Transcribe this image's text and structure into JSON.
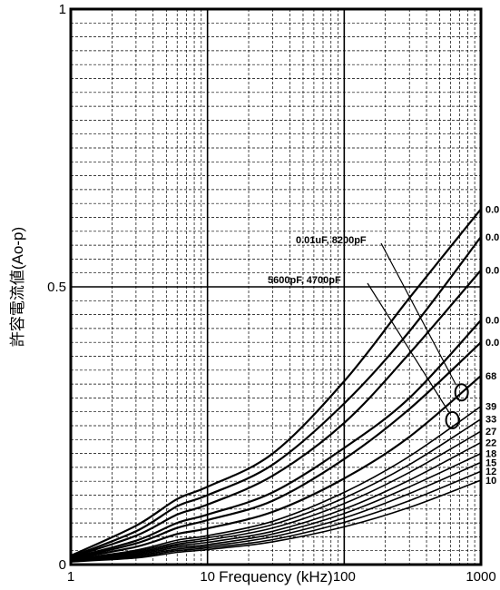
{
  "chart_data": {
    "type": "line",
    "xlabel": "Frequency (kHz)",
    "ylabel": "許容電流値(Ao-p)",
    "x_scale": "log",
    "xlim": [
      1,
      1000
    ],
    "ylim": [
      0,
      1
    ],
    "x_ticks": [
      {
        "value": 1,
        "label": "1"
      },
      {
        "value": 10,
        "label": "10"
      },
      {
        "value": 100,
        "label": "100"
      },
      {
        "value": 1000,
        "label": "1000"
      }
    ],
    "y_ticks": [
      {
        "value": 0,
        "label": "0"
      },
      {
        "value": 0.5,
        "label": "0.5"
      },
      {
        "value": 1,
        "label": "1"
      }
    ],
    "grid": "minor dashed, major solid at decades",
    "annotations": [
      {
        "text": "0.01uF, 8200pF",
        "x": 700,
        "y": 0.31
      },
      {
        "text": "5600pF, 4700pF",
        "x": 600,
        "y": 0.26
      }
    ],
    "series": [
      {
        "name": "0.0",
        "values": [
          [
            1,
            0.016
          ],
          [
            3,
            0.07
          ],
          [
            6,
            0.118
          ],
          [
            10,
            0.14
          ],
          [
            30,
            0.2
          ],
          [
            100,
            0.33
          ],
          [
            300,
            0.48
          ],
          [
            1000,
            0.64
          ]
        ]
      },
      {
        "name": "0.0",
        "values": [
          [
            1,
            0.014
          ],
          [
            3,
            0.06
          ],
          [
            6,
            0.105
          ],
          [
            10,
            0.125
          ],
          [
            30,
            0.18
          ],
          [
            100,
            0.29
          ],
          [
            300,
            0.42
          ],
          [
            1000,
            0.59
          ]
        ]
      },
      {
        "name": "0.0",
        "values": [
          [
            1,
            0.013
          ],
          [
            3,
            0.052
          ],
          [
            6,
            0.09
          ],
          [
            10,
            0.108
          ],
          [
            30,
            0.16
          ],
          [
            100,
            0.255
          ],
          [
            300,
            0.38
          ],
          [
            1000,
            0.53
          ]
        ]
      },
      {
        "name": "0.0",
        "values": [
          [
            1,
            0.012
          ],
          [
            3,
            0.043
          ],
          [
            6,
            0.075
          ],
          [
            10,
            0.09
          ],
          [
            30,
            0.13
          ],
          [
            100,
            0.21
          ],
          [
            300,
            0.3
          ],
          [
            1000,
            0.44
          ]
        ]
      },
      {
        "name": "0.0",
        "values": [
          [
            1,
            0.011
          ],
          [
            3,
            0.038
          ],
          [
            6,
            0.066
          ],
          [
            10,
            0.08
          ],
          [
            30,
            0.115
          ],
          [
            100,
            0.19
          ],
          [
            300,
            0.28
          ],
          [
            1000,
            0.4
          ]
        ]
      },
      {
        "name": "68",
        "values": [
          [
            1,
            0.01
          ],
          [
            3,
            0.032
          ],
          [
            6,
            0.055
          ],
          [
            10,
            0.065
          ],
          [
            30,
            0.095
          ],
          [
            100,
            0.155
          ],
          [
            300,
            0.23
          ],
          [
            1000,
            0.34
          ]
        ]
      },
      {
        "name": "39",
        "values": [
          [
            1,
            0.009
          ],
          [
            3,
            0.026
          ],
          [
            6,
            0.044
          ],
          [
            10,
            0.052
          ],
          [
            30,
            0.078
          ],
          [
            100,
            0.13
          ],
          [
            300,
            0.195
          ],
          [
            1000,
            0.285
          ]
        ]
      },
      {
        "name": "33",
        "values": [
          [
            1,
            0.008
          ],
          [
            3,
            0.024
          ],
          [
            6,
            0.04
          ],
          [
            10,
            0.048
          ],
          [
            30,
            0.072
          ],
          [
            100,
            0.12
          ],
          [
            300,
            0.18
          ],
          [
            1000,
            0.262
          ]
        ]
      },
      {
        "name": "27",
        "values": [
          [
            1,
            0.008
          ],
          [
            3,
            0.022
          ],
          [
            6,
            0.037
          ],
          [
            10,
            0.044
          ],
          [
            30,
            0.066
          ],
          [
            100,
            0.11
          ],
          [
            300,
            0.166
          ],
          [
            1000,
            0.24
          ]
        ]
      },
      {
        "name": "22",
        "values": [
          [
            1,
            0.007
          ],
          [
            3,
            0.02
          ],
          [
            6,
            0.034
          ],
          [
            10,
            0.04
          ],
          [
            30,
            0.06
          ],
          [
            100,
            0.1
          ],
          [
            300,
            0.152
          ],
          [
            1000,
            0.22
          ]
        ]
      },
      {
        "name": "18",
        "values": [
          [
            1,
            0.006
          ],
          [
            3,
            0.018
          ],
          [
            6,
            0.031
          ],
          [
            10,
            0.036
          ],
          [
            30,
            0.055
          ],
          [
            100,
            0.092
          ],
          [
            300,
            0.14
          ],
          [
            1000,
            0.2
          ]
        ]
      },
      {
        "name": "15",
        "values": [
          [
            1,
            0.006
          ],
          [
            3,
            0.016
          ],
          [
            6,
            0.028
          ],
          [
            10,
            0.033
          ],
          [
            30,
            0.05
          ],
          [
            100,
            0.084
          ],
          [
            300,
            0.128
          ],
          [
            1000,
            0.184
          ]
        ]
      },
      {
        "name": "12",
        "values": [
          [
            1,
            0.005
          ],
          [
            3,
            0.014
          ],
          [
            6,
            0.025
          ],
          [
            10,
            0.03
          ],
          [
            30,
            0.045
          ],
          [
            100,
            0.076
          ],
          [
            300,
            0.115
          ],
          [
            1000,
            0.168
          ]
        ]
      },
      {
        "name": "10",
        "values": [
          [
            1,
            0.005
          ],
          [
            3,
            0.012
          ],
          [
            6,
            0.022
          ],
          [
            10,
            0.027
          ],
          [
            30,
            0.041
          ],
          [
            100,
            0.068
          ],
          [
            300,
            0.103
          ],
          [
            1000,
            0.152
          ]
        ]
      }
    ]
  }
}
